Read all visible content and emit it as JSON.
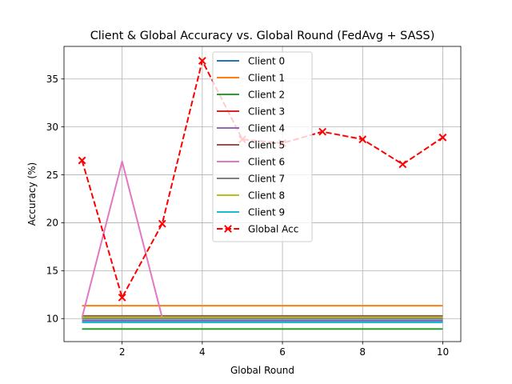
{
  "chart_data": {
    "type": "line",
    "title": "Client & Global Accuracy vs. Global Round (FedAvg + SASS)",
    "xlabel": "Global Round",
    "ylabel": "Accuracy (%)",
    "xlim": [
      0.55,
      10.45
    ],
    "ylim": [
      7.6,
      38.4
    ],
    "xticks": [
      2,
      4,
      6,
      8,
      10
    ],
    "yticks": [
      10,
      15,
      20,
      25,
      30,
      35
    ],
    "grid": true,
    "legend_position": "upper-center",
    "x": [
      1,
      2,
      3,
      4,
      5,
      6,
      7,
      8,
      9,
      10
    ],
    "series": [
      {
        "name": "Client 0",
        "color": "#1f77b4",
        "style": "solid",
        "values": [
          9.8,
          9.8,
          9.8,
          9.8,
          9.8,
          9.8,
          9.8,
          9.8,
          9.8,
          9.8
        ]
      },
      {
        "name": "Client 1",
        "color": "#ff7f0e",
        "style": "solid",
        "values": [
          11.35,
          11.35,
          11.35,
          11.35,
          11.35,
          11.35,
          11.35,
          11.35,
          11.35,
          11.35
        ]
      },
      {
        "name": "Client 2",
        "color": "#2ca02c",
        "style": "solid",
        "values": [
          8.92,
          8.92,
          8.92,
          8.92,
          8.92,
          8.92,
          8.92,
          8.92,
          8.92,
          8.92
        ]
      },
      {
        "name": "Client 3",
        "color": "#d62728",
        "style": "solid",
        "values": [
          10.1,
          10.1,
          10.1,
          10.1,
          10.1,
          10.1,
          10.1,
          10.1,
          10.1,
          10.1
        ]
      },
      {
        "name": "Client 4",
        "color": "#9467bd",
        "style": "solid",
        "values": [
          9.74,
          9.74,
          9.74,
          9.74,
          9.74,
          9.74,
          9.74,
          9.74,
          9.74,
          9.74
        ]
      },
      {
        "name": "Client 5",
        "color": "#8c564b",
        "style": "solid",
        "values": [
          10.28,
          10.28,
          10.28,
          10.28,
          10.28,
          10.28,
          10.28,
          10.28,
          10.28,
          10.28
        ]
      },
      {
        "name": "Client 6",
        "color": "#e377c2",
        "style": "solid",
        "values": [
          10.1,
          26.4,
          10.1,
          10.1,
          10.1,
          10.1,
          10.1,
          10.1,
          10.1,
          10.1
        ]
      },
      {
        "name": "Client 7",
        "color": "#7f7f7f",
        "style": "solid",
        "values": [
          10.0,
          10.0,
          10.0,
          10.0,
          10.0,
          10.0,
          10.0,
          10.0,
          10.0,
          10.0
        ]
      },
      {
        "name": "Client 8",
        "color": "#bcbd22",
        "style": "solid",
        "values": [
          10.15,
          10.15,
          10.15,
          10.15,
          10.15,
          10.15,
          10.15,
          10.15,
          10.15,
          10.15
        ]
      },
      {
        "name": "Client 9",
        "color": "#17becf",
        "style": "solid",
        "values": [
          9.6,
          9.6,
          9.6,
          9.6,
          9.6,
          9.6,
          9.6,
          9.6,
          9.6,
          9.6
        ]
      },
      {
        "name": "Global Acc",
        "color": "#ff0000",
        "style": "dashed",
        "marker": "x",
        "values": [
          26.5,
          12.2,
          19.9,
          36.9,
          28.7,
          28.3,
          29.5,
          28.7,
          26.1,
          28.9
        ]
      }
    ]
  }
}
